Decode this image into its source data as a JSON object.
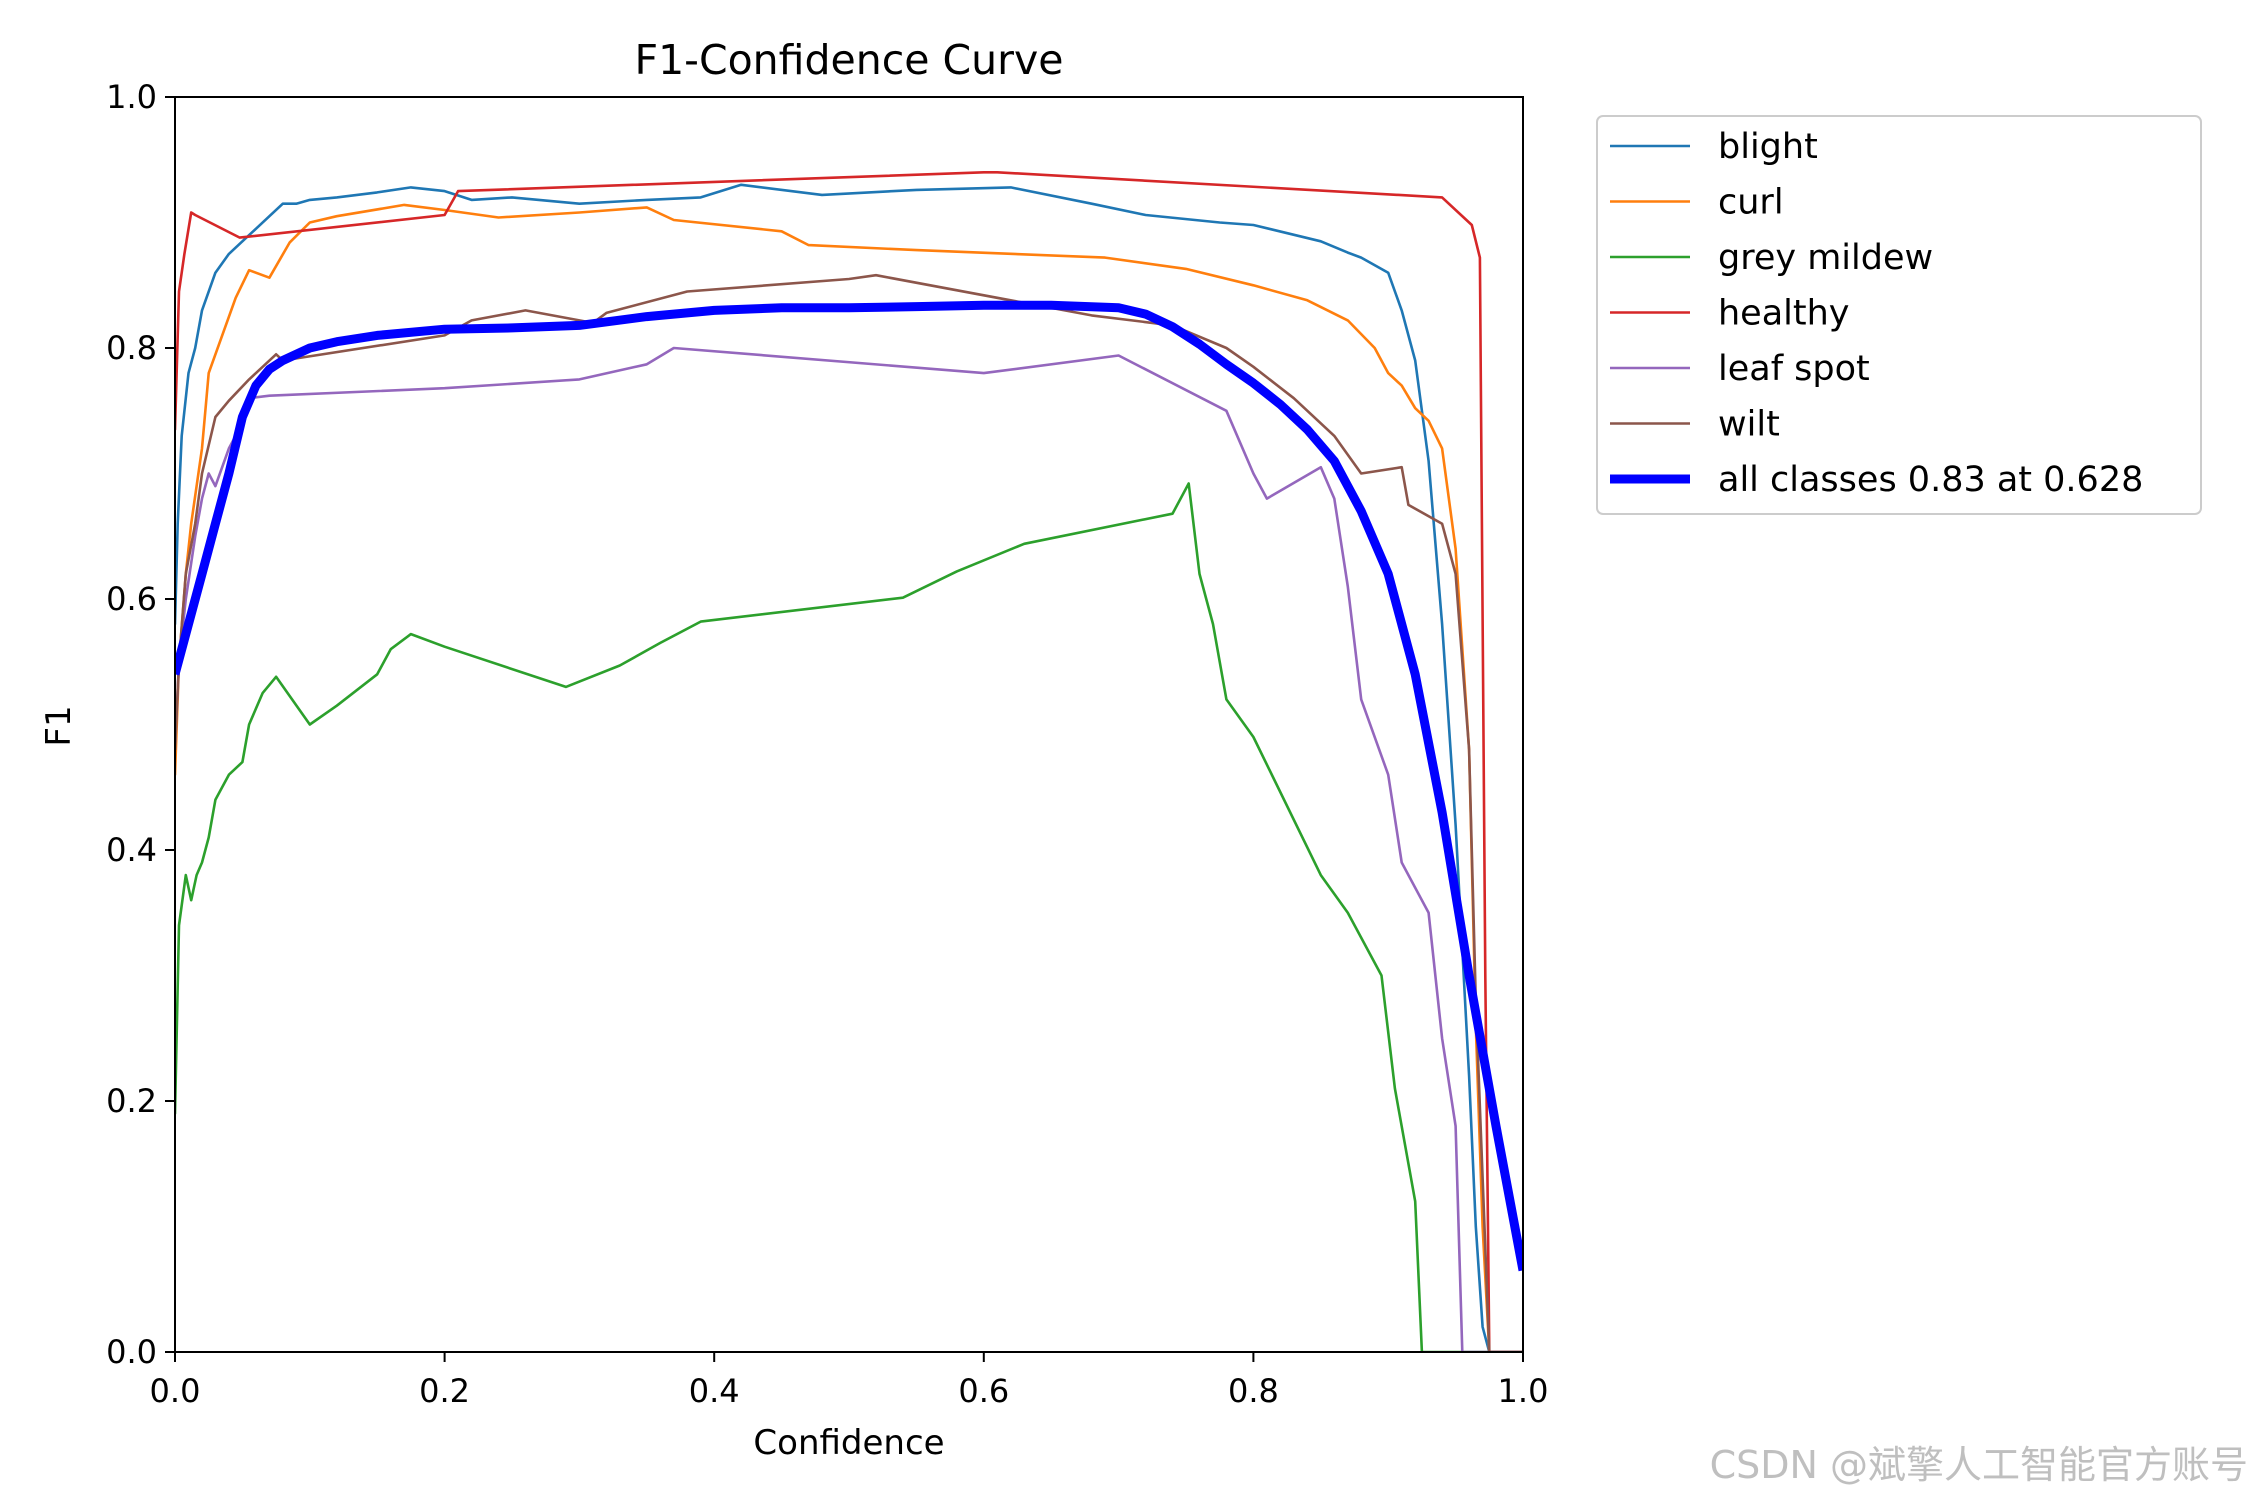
{
  "watermark": "CSDN @斌擎人工智能官方账号",
  "chart_data": {
    "type": "line",
    "title": "F1-Confidence Curve",
    "xlabel": "Confidence",
    "ylabel": "F1",
    "xlim": [
      0.0,
      1.0
    ],
    "ylim": [
      0.0,
      1.0
    ],
    "grid": false,
    "legend_position": "outside-top-right",
    "xticks": [
      "0.0",
      "0.2",
      "0.4",
      "0.6",
      "0.8",
      "1.0"
    ],
    "yticks": [
      "0.0",
      "0.2",
      "0.4",
      "0.6",
      "0.8",
      "1.0"
    ],
    "series": [
      {
        "name": "blight",
        "color": "#1f77b4",
        "x": [
          0.0,
          0.002,
          0.005,
          0.01,
          0.015,
          0.02,
          0.03,
          0.04,
          0.05,
          0.06,
          0.07,
          0.08,
          0.09,
          0.1,
          0.12,
          0.15,
          0.175,
          0.2,
          0.22,
          0.25,
          0.3,
          0.35,
          0.39,
          0.42,
          0.48,
          0.55,
          0.62,
          0.68,
          0.72,
          0.775,
          0.8,
          0.85,
          0.87,
          0.88,
          0.9,
          0.91,
          0.92,
          0.93,
          0.94,
          0.95,
          0.96,
          0.965,
          0.97,
          0.975,
          1.0
        ],
        "y": [
          0.58,
          0.66,
          0.73,
          0.78,
          0.8,
          0.83,
          0.86,
          0.875,
          0.885,
          0.895,
          0.905,
          0.915,
          0.915,
          0.918,
          0.92,
          0.924,
          0.928,
          0.925,
          0.918,
          0.92,
          0.915,
          0.918,
          0.92,
          0.93,
          0.922,
          0.926,
          0.928,
          0.915,
          0.906,
          0.9,
          0.898,
          0.885,
          0.876,
          0.872,
          0.86,
          0.83,
          0.79,
          0.71,
          0.58,
          0.42,
          0.22,
          0.1,
          0.02,
          0.0,
          0.0
        ]
      },
      {
        "name": "curl",
        "color": "#ff7f0e",
        "x": [
          0.0,
          0.003,
          0.008,
          0.012,
          0.02,
          0.025,
          0.035,
          0.045,
          0.055,
          0.07,
          0.085,
          0.1,
          0.12,
          0.17,
          0.2,
          0.24,
          0.3,
          0.35,
          0.37,
          0.45,
          0.47,
          0.55,
          0.69,
          0.75,
          0.8,
          0.84,
          0.87,
          0.89,
          0.9,
          0.91,
          0.92,
          0.93,
          0.94,
          0.95,
          0.96,
          0.965,
          0.97,
          0.975,
          1.0
        ],
        "y": [
          0.46,
          0.55,
          0.62,
          0.66,
          0.72,
          0.78,
          0.81,
          0.84,
          0.862,
          0.856,
          0.884,
          0.9,
          0.905,
          0.914,
          0.91,
          0.904,
          0.908,
          0.912,
          0.902,
          0.893,
          0.882,
          0.878,
          0.872,
          0.863,
          0.85,
          0.838,
          0.822,
          0.8,
          0.78,
          0.77,
          0.752,
          0.742,
          0.72,
          0.64,
          0.48,
          0.26,
          0.1,
          0.0,
          0.0
        ]
      },
      {
        "name": "grey mildew",
        "color": "#2ca02c",
        "x": [
          0.0,
          0.003,
          0.008,
          0.012,
          0.016,
          0.02,
          0.025,
          0.03,
          0.04,
          0.05,
          0.055,
          0.065,
          0.075,
          0.1,
          0.12,
          0.15,
          0.16,
          0.175,
          0.2,
          0.29,
          0.33,
          0.36,
          0.39,
          0.54,
          0.58,
          0.63,
          0.74,
          0.752,
          0.76,
          0.77,
          0.78,
          0.8,
          0.85,
          0.87,
          0.895,
          0.905,
          0.92,
          0.925,
          0.93,
          1.0
        ],
        "y": [
          0.19,
          0.34,
          0.38,
          0.36,
          0.38,
          0.39,
          0.41,
          0.44,
          0.46,
          0.47,
          0.5,
          0.525,
          0.538,
          0.5,
          0.515,
          0.54,
          0.56,
          0.572,
          0.562,
          0.53,
          0.547,
          0.565,
          0.582,
          0.601,
          0.622,
          0.644,
          0.668,
          0.692,
          0.62,
          0.58,
          0.52,
          0.49,
          0.38,
          0.35,
          0.3,
          0.21,
          0.12,
          0.0,
          0.0,
          0.0
        ]
      },
      {
        "name": "healthy",
        "color": "#d62728",
        "x": [
          0.0,
          0.003,
          0.007,
          0.012,
          0.015,
          0.048,
          0.2,
          0.21,
          0.6,
          0.61,
          0.94,
          0.962,
          0.968,
          0.972,
          0.975,
          1.0
        ],
        "y": [
          0.735,
          0.845,
          0.875,
          0.908,
          0.906,
          0.888,
          0.906,
          0.925,
          0.94,
          0.94,
          0.92,
          0.898,
          0.872,
          0.3,
          0.0,
          0.0
        ]
      },
      {
        "name": "leaf spot",
        "color": "#9467bd",
        "x": [
          0.0,
          0.003,
          0.008,
          0.015,
          0.02,
          0.025,
          0.03,
          0.04,
          0.05,
          0.055,
          0.07,
          0.2,
          0.3,
          0.35,
          0.37,
          0.6,
          0.7,
          0.78,
          0.8,
          0.81,
          0.85,
          0.86,
          0.87,
          0.88,
          0.9,
          0.91,
          0.93,
          0.94,
          0.95,
          0.955,
          0.96,
          1.0
        ],
        "y": [
          0.48,
          0.55,
          0.6,
          0.65,
          0.68,
          0.7,
          0.69,
          0.72,
          0.74,
          0.76,
          0.762,
          0.768,
          0.775,
          0.787,
          0.8,
          0.78,
          0.794,
          0.75,
          0.7,
          0.68,
          0.705,
          0.68,
          0.61,
          0.52,
          0.46,
          0.39,
          0.35,
          0.25,
          0.18,
          0.0,
          0.0,
          0.0
        ]
      },
      {
        "name": "wilt",
        "color": "#8c564b",
        "x": [
          0.0,
          0.003,
          0.008,
          0.015,
          0.02,
          0.03,
          0.04,
          0.055,
          0.075,
          0.08,
          0.2,
          0.22,
          0.26,
          0.31,
          0.32,
          0.38,
          0.5,
          0.52,
          0.68,
          0.74,
          0.78,
          0.8,
          0.83,
          0.86,
          0.88,
          0.91,
          0.915,
          0.94,
          0.95,
          0.96,
          0.965,
          0.975,
          1.0
        ],
        "y": [
          0.48,
          0.55,
          0.62,
          0.66,
          0.7,
          0.745,
          0.758,
          0.775,
          0.795,
          0.79,
          0.81,
          0.822,
          0.83,
          0.82,
          0.828,
          0.845,
          0.855,
          0.858,
          0.826,
          0.818,
          0.8,
          0.785,
          0.76,
          0.73,
          0.7,
          0.705,
          0.675,
          0.66,
          0.62,
          0.48,
          0.28,
          0.0,
          0.0
        ]
      },
      {
        "name": "all classes 0.83 at 0.628",
        "color": "#0000ff",
        "bold": true,
        "x": [
          0.0,
          0.01,
          0.02,
          0.03,
          0.04,
          0.05,
          0.06,
          0.07,
          0.08,
          0.1,
          0.12,
          0.15,
          0.2,
          0.25,
          0.3,
          0.35,
          0.4,
          0.45,
          0.5,
          0.55,
          0.6,
          0.628,
          0.65,
          0.7,
          0.72,
          0.74,
          0.76,
          0.78,
          0.8,
          0.82,
          0.84,
          0.86,
          0.88,
          0.9,
          0.92,
          0.94,
          0.96,
          0.98,
          1.0
        ],
        "y": [
          0.54,
          0.58,
          0.62,
          0.66,
          0.7,
          0.745,
          0.77,
          0.783,
          0.79,
          0.8,
          0.805,
          0.81,
          0.815,
          0.816,
          0.818,
          0.825,
          0.83,
          0.832,
          0.832,
          0.833,
          0.834,
          0.834,
          0.834,
          0.832,
          0.827,
          0.817,
          0.803,
          0.787,
          0.772,
          0.755,
          0.735,
          0.71,
          0.67,
          0.62,
          0.54,
          0.43,
          0.3,
          0.18,
          0.065
        ]
      }
    ]
  }
}
